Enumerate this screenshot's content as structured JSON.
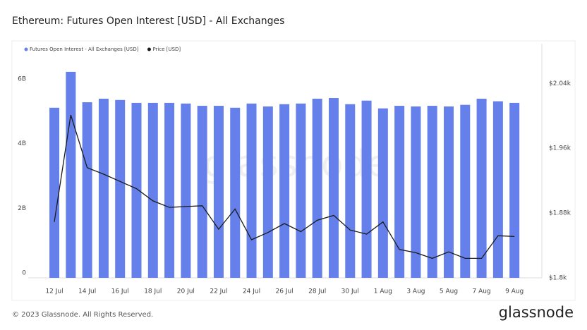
{
  "chart_data": {
    "type": "bar_line",
    "title": "Ethereum: Futures Open Interest [USD] - All Exchanges",
    "footer": "© 2023 Glassnode. All Rights Reserved.",
    "brand": "glassnode",
    "categories": [
      "12 Jul",
      null,
      "14 Jul",
      null,
      "16 Jul",
      null,
      "18 Jul",
      null,
      "20 Jul",
      null,
      "22 Jul",
      null,
      "24 Jul",
      null,
      "26 Jul",
      null,
      "28 Jul",
      null,
      "30 Jul",
      null,
      "1 Aug",
      null,
      "3 Aug",
      null,
      "5 Aug",
      null,
      "7 Aug",
      null,
      "9 Aug"
    ],
    "series": [
      {
        "name": "Futures Open Interest - All Exchanges [USD]",
        "color": "#6580ea",
        "kind": "bar",
        "values": [
          5260000000,
          6370000000,
          5430000000,
          5540000000,
          5500000000,
          5410000000,
          5410000000,
          5410000000,
          5390000000,
          5320000000,
          5320000000,
          5260000000,
          5390000000,
          5300000000,
          5370000000,
          5390000000,
          5540000000,
          5560000000,
          5370000000,
          5480000000,
          5240000000,
          5320000000,
          5300000000,
          5320000000,
          5300000000,
          5350000000,
          5540000000,
          5460000000,
          5410000000
        ]
      },
      {
        "name": "Price [USD]",
        "color": "#1a1a1a",
        "kind": "line",
        "axis": "y2",
        "values": [
          1869,
          2001,
          1936,
          1928,
          1919,
          1910,
          1895,
          1887,
          1888,
          1889,
          1860,
          1885,
          1847,
          1856,
          1867,
          1857,
          1871,
          1877,
          1859,
          1854,
          1869,
          1835,
          1831,
          1824,
          1832,
          1824,
          1824,
          1852,
          1851
        ]
      }
    ],
    "ylim": [
      0,
      7240000000
    ],
    "yticks": [
      0,
      {
        "value": 2000000000,
        "label": "2B"
      },
      {
        "value": 4000000000,
        "label": "4B"
      },
      {
        "value": 6000000000,
        "label": "6B"
      }
    ],
    "y2lim": [
      1800,
      2089
    ],
    "y2ticks": [
      {
        "value": 1800,
        "label": "$1.8k"
      },
      {
        "value": 1880,
        "label": "$1.88k"
      },
      {
        "value": 1960,
        "label": "$1.96k"
      },
      {
        "value": 2040,
        "label": "$2.04k"
      }
    ],
    "grid": false,
    "legend": "top-left"
  }
}
